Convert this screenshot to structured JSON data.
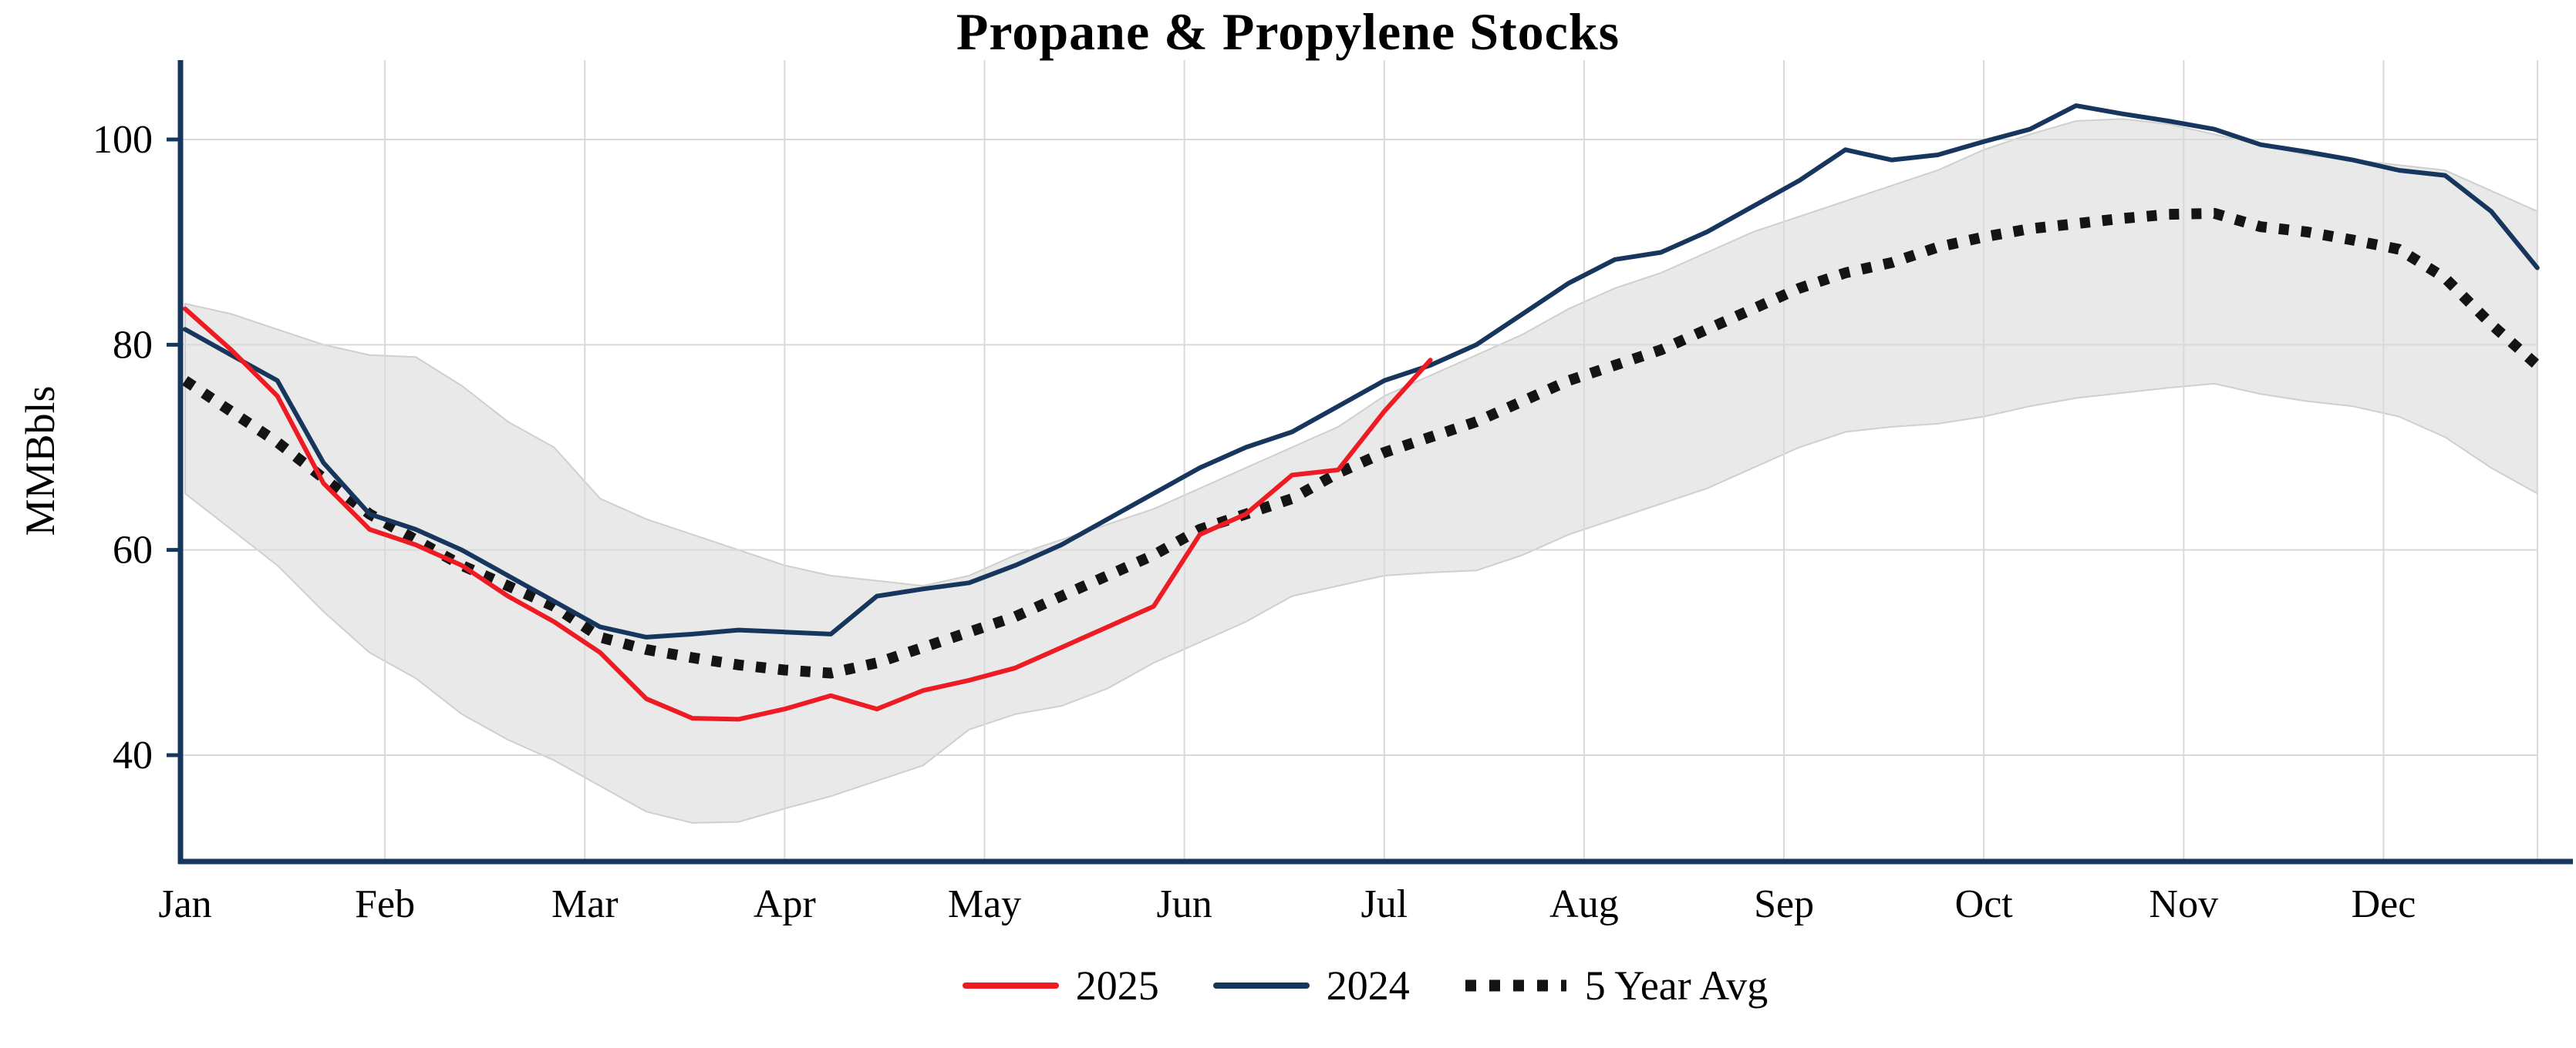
{
  "page": {
    "background": "#ffffff"
  },
  "chart_data": {
    "type": "line",
    "title": "Propane & Propylene Stocks",
    "ylabel": "MMBbls",
    "yticks": [
      40,
      60,
      80,
      100
    ],
    "ylim": [
      30,
      105
    ],
    "months": [
      "Jan",
      "Feb",
      "Mar",
      "Apr",
      "May",
      "Jun",
      "Jul",
      "Aug",
      "Sep",
      "Oct",
      "Nov",
      "Dec"
    ],
    "x_range_months": [
      0,
      11.77
    ],
    "x_spacing": "weekly (12/52 month per point, starting at Jan)",
    "grid": true,
    "legend_position": "bottom-center",
    "axis_color": "#17365d",
    "grid_color": "#d9d9d9",
    "band": {
      "name": "5-year range",
      "color": "#e9e9e9",
      "edge_color": "#cfcfcf",
      "upper": [
        84.0,
        83.0,
        81.5,
        80.0,
        79.0,
        78.8,
        76.0,
        72.5,
        70.0,
        65.0,
        63.0,
        61.5,
        60.0,
        58.5,
        57.5,
        57.0,
        56.5,
        57.5,
        59.5,
        61.0,
        62.5,
        64.0,
        66.0,
        68.0,
        70.0,
        72.0,
        75.0,
        77.0,
        79.0,
        81.0,
        83.5,
        85.5,
        87.0,
        89.0,
        91.0,
        92.5,
        94.0,
        95.5,
        97.0,
        99.0,
        100.5,
        101.8,
        102.0,
        101.5,
        100.5,
        99.5,
        98.5,
        98.0,
        97.5,
        97.0,
        95.0,
        93.0
      ],
      "lower": [
        65.5,
        62.0,
        58.5,
        54.0,
        50.0,
        47.5,
        44.0,
        41.5,
        39.5,
        37.0,
        34.5,
        33.4,
        33.5,
        34.8,
        36.0,
        37.5,
        39.0,
        42.5,
        44.0,
        44.8,
        46.5,
        49.0,
        51.0,
        53.0,
        55.5,
        56.5,
        57.5,
        57.8,
        58.0,
        59.5,
        61.5,
        63.0,
        64.5,
        66.0,
        68.0,
        70.0,
        71.5,
        72.0,
        72.3,
        73.0,
        74.0,
        74.8,
        75.3,
        75.8,
        76.2,
        75.2,
        74.5,
        74.0,
        73.0,
        71.0,
        68.0,
        65.5
      ]
    },
    "series": [
      {
        "name": "2025",
        "color": "#ed1c24",
        "style": "solid",
        "values": [
          83.5,
          79.5,
          75.0,
          66.5,
          62.0,
          60.5,
          58.5,
          55.5,
          53.0,
          50.0,
          45.5,
          43.6,
          43.5,
          44.5,
          45.8,
          44.5,
          46.3,
          47.3,
          48.5,
          50.5,
          52.5,
          54.5,
          61.5,
          63.5,
          67.3,
          67.8,
          73.5,
          78.5
        ]
      },
      {
        "name": "2024",
        "color": "#17365d",
        "style": "solid",
        "values": [
          81.5,
          79.0,
          76.5,
          68.5,
          63.5,
          62.0,
          60.0,
          57.5,
          55.0,
          52.5,
          51.5,
          51.8,
          52.2,
          52.0,
          51.8,
          55.5,
          56.2,
          56.8,
          58.5,
          60.5,
          63.0,
          65.5,
          68.0,
          70.0,
          71.5,
          74.0,
          76.5,
          78.0,
          80.0,
          83.0,
          86.0,
          88.3,
          89.0,
          91.0,
          93.5,
          96.0,
          99.0,
          98.0,
          98.5,
          99.8,
          101.0,
          103.3,
          102.5,
          101.8,
          101.0,
          99.5,
          98.8,
          98.0,
          97.0,
          96.5,
          93.0,
          87.5
        ]
      },
      {
        "name": "5 Year Avg",
        "color": "#141414",
        "style": "dotted",
        "values": [
          76.5,
          73.5,
          70.5,
          67.0,
          63.5,
          61.0,
          58.5,
          56.5,
          54.5,
          51.5,
          50.3,
          49.5,
          48.8,
          48.3,
          48.0,
          49.0,
          50.5,
          52.0,
          53.5,
          55.5,
          57.5,
          59.5,
          62.0,
          63.5,
          65.0,
          67.5,
          69.5,
          71.0,
          72.5,
          74.5,
          76.5,
          78.0,
          79.5,
          81.5,
          83.5,
          85.5,
          87.0,
          88.0,
          89.5,
          90.5,
          91.3,
          91.8,
          92.3,
          92.7,
          92.8,
          91.5,
          91.0,
          90.2,
          89.3,
          86.5,
          82.0,
          78.0
        ]
      }
    ],
    "legend": [
      {
        "label": "2025",
        "color": "#ed1c24",
        "style": "solid"
      },
      {
        "label": "2024",
        "color": "#17365d",
        "style": "solid"
      },
      {
        "label": "5 Year Avg",
        "color": "#141414",
        "style": "dotted"
      }
    ]
  }
}
